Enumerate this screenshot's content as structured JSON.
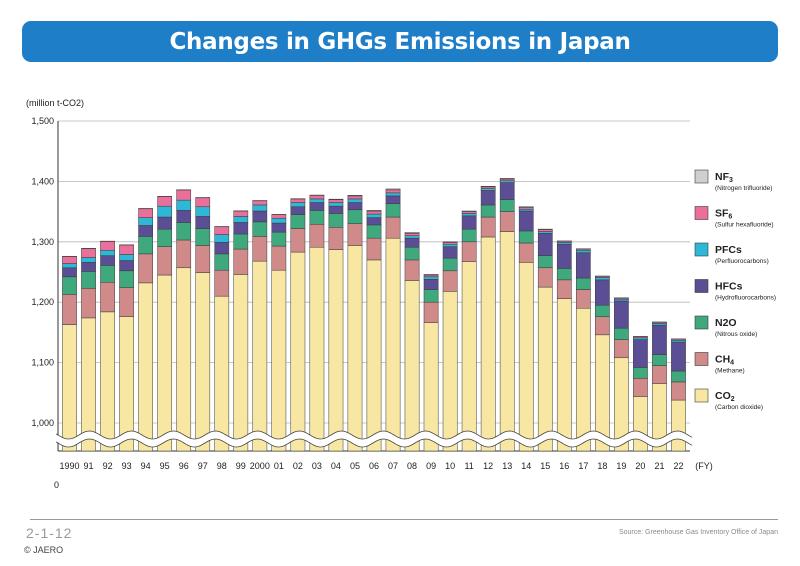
{
  "page": {
    "figure_number": "2-1-12",
    "copyright": "© JAERO",
    "source": "Source: Greenhouse Gas Inventory Office of Japan"
  },
  "chart_data": {
    "type": "bar",
    "stacked": true,
    "title": "Changes in GHGs Emissions in Japan",
    "ylabel": "(million t-CO2)",
    "xlabel": "(FY)",
    "ylim": [
      1000,
      1500
    ],
    "axis_break": true,
    "zero_label": "0",
    "yticks": [
      "1,000",
      "1,100",
      "1,200",
      "1,300",
      "1,400",
      "1,500"
    ],
    "grid": true,
    "legend_position": "right",
    "categories": [
      "1990",
      "91",
      "92",
      "93",
      "94",
      "95",
      "96",
      "97",
      "98",
      "99",
      "2000",
      "01",
      "02",
      "03",
      "04",
      "05",
      "06",
      "07",
      "08",
      "09",
      "10",
      "11",
      "12",
      "13",
      "14",
      "15",
      "16",
      "17",
      "18",
      "19",
      "20",
      "21",
      "22"
    ],
    "series": [
      {
        "key": "co2",
        "name": "CO2",
        "subtitle": "(Carbon dioxide)",
        "color": "#f8e7a2",
        "values": [
          1163,
          1174,
          1184,
          1176,
          1232,
          1245,
          1257,
          1249,
          1210,
          1246,
          1268,
          1253,
          1283,
          1291,
          1287,
          1294,
          1270,
          1306,
          1236,
          1166,
          1218,
          1267,
          1308,
          1317,
          1266,
          1225,
          1206,
          1190,
          1146,
          1108,
          1044,
          1065,
          1038
        ]
      },
      {
        "key": "ch4",
        "name": "CH4",
        "subtitle": "(Methane)",
        "color": "#d18a8a",
        "values": [
          50,
          49,
          49,
          48,
          48,
          47,
          46,
          45,
          43,
          42,
          41,
          40,
          39,
          38,
          37,
          36,
          36,
          35,
          34,
          34,
          34,
          33,
          33,
          33,
          32,
          32,
          31,
          31,
          30,
          30,
          30,
          30,
          30
        ]
      },
      {
        "key": "n2o",
        "name": "N2O",
        "subtitle": "(Nitrous oxide)",
        "color": "#3fa87d",
        "values": [
          29,
          28,
          28,
          28,
          29,
          29,
          29,
          28,
          27,
          25,
          24,
          23,
          23,
          23,
          23,
          23,
          22,
          22,
          21,
          21,
          21,
          21,
          20,
          20,
          20,
          20,
          19,
          19,
          19,
          19,
          18,
          18,
          18
        ]
      },
      {
        "key": "hfcs",
        "name": "HFCs",
        "subtitle": "(Hydrofluorocarbons)",
        "color": "#5b4e94",
        "values": [
          15,
          15,
          16,
          17,
          18,
          20,
          20,
          20,
          19,
          19,
          18,
          15,
          13,
          13,
          12,
          12,
          12,
          13,
          15,
          17,
          19,
          22,
          24,
          28,
          33,
          37,
          40,
          42,
          42,
          45,
          46,
          49,
          48
        ]
      },
      {
        "key": "pfcs",
        "name": "PFCs",
        "subtitle": "(Perfluorocarbons)",
        "color": "#2eb7d6",
        "values": [
          7,
          8,
          9,
          10,
          13,
          18,
          17,
          16,
          13,
          10,
          10,
          8,
          7,
          6,
          6,
          6,
          6,
          5,
          4,
          4,
          4,
          4,
          3,
          3,
          3,
          3,
          3,
          4,
          4,
          3,
          3,
          3,
          3
        ]
      },
      {
        "key": "sf6",
        "name": "SF6",
        "subtitle": "(Sulfur hexafluoride)",
        "color": "#ea6f9b",
        "values": [
          12,
          15,
          15,
          16,
          15,
          16,
          17,
          15,
          13,
          9,
          7,
          6,
          6,
          6,
          5,
          5,
          5,
          5,
          4,
          3,
          3,
          3,
          3,
          3,
          3,
          3,
          2,
          2,
          2,
          2,
          2,
          2,
          2
        ]
      },
      {
        "key": "nf3",
        "name": "NF3",
        "subtitle": "(Nitrogen trifluoride)",
        "color": "#cfcfcf",
        "values": [
          0.03,
          0.03,
          0.04,
          0.05,
          0.06,
          0.2,
          0.2,
          0.3,
          0.3,
          0.3,
          0.3,
          0.3,
          0.4,
          0.4,
          0.6,
          1,
          1,
          1.5,
          1.5,
          1,
          1,
          1,
          1,
          1,
          1,
          1,
          0.5,
          0.5,
          0.4,
          0.3,
          0.3,
          0.3,
          0.3
        ]
      }
    ]
  }
}
